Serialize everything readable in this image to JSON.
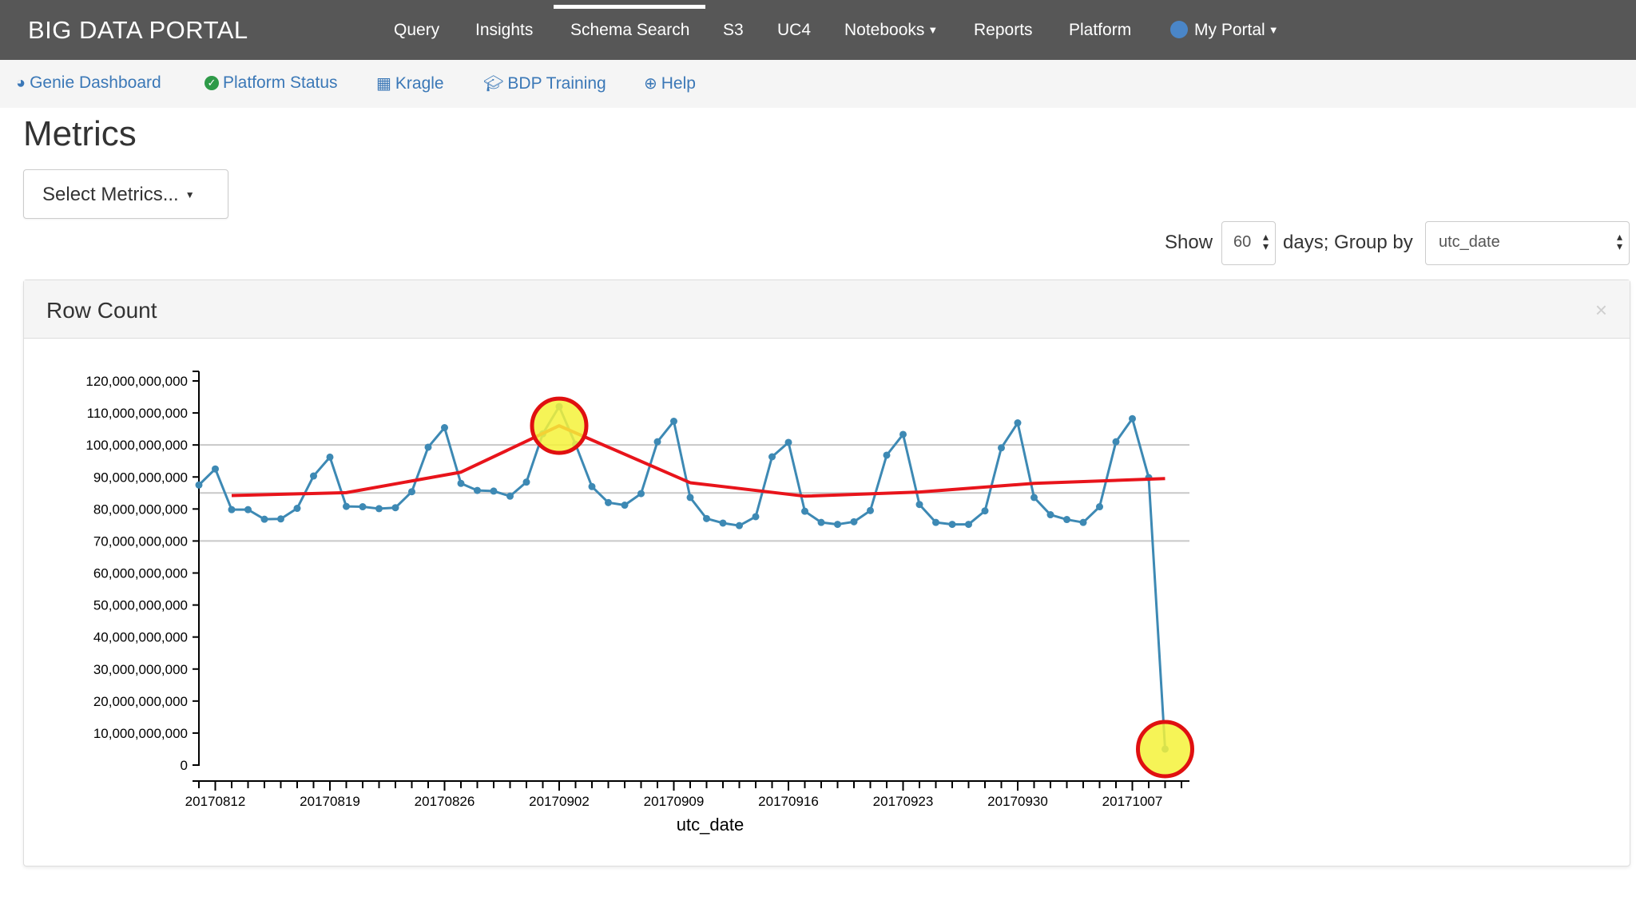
{
  "navbar": {
    "brand": "BIG DATA PORTAL",
    "items": [
      {
        "label": "Query"
      },
      {
        "label": "Insights"
      },
      {
        "label": "Schema Search",
        "active": true
      },
      {
        "label": "S3"
      },
      {
        "label": "UC4"
      },
      {
        "label": "Notebooks",
        "dropdown": true
      },
      {
        "label": "Reports"
      },
      {
        "label": "Platform"
      },
      {
        "label": "My Portal",
        "dropdown": true,
        "icon": "globe-icon"
      }
    ]
  },
  "subnav": {
    "items": [
      {
        "label": "Genie Dashboard",
        "icon": "dashboard-icon"
      },
      {
        "label": "Platform Status",
        "icon": "check-circle-icon"
      },
      {
        "label": "Kragle",
        "icon": "calendar-icon"
      },
      {
        "label": "BDP Training",
        "icon": "graduation-cap-icon"
      },
      {
        "label": "Help",
        "icon": "life-ring-icon"
      }
    ]
  },
  "page": {
    "title": "Metrics",
    "select_metrics_label": "Select Metrics...",
    "show_label": "Show",
    "days_value": "60",
    "days_group_label": "days; Group by",
    "group_by_value": "utc_date"
  },
  "panel": {
    "title": "Row Count",
    "close_glyph": "×"
  },
  "colors": {
    "navbar_bg": "#575757",
    "link": "#3b78b7",
    "series": "#3d89b4",
    "trend": "#e8141b",
    "highlight_fill": "#f4f23a",
    "highlight_ring": "#e01010"
  },
  "chart_data": {
    "type": "line",
    "title": "Row Count",
    "xlabel": "utc_date",
    "ylabel": "",
    "ylim": [
      0,
      120000000000
    ],
    "y_ticks": [
      0,
      10000000000,
      20000000000,
      30000000000,
      40000000000,
      50000000000,
      60000000000,
      70000000000,
      80000000000,
      90000000000,
      100000000000,
      110000000000,
      120000000000
    ],
    "y_tick_labels": [
      "0",
      "10,000,000,000",
      "20,000,000,000",
      "30,000,000,000",
      "40,000,000,000",
      "50,000,000,000",
      "60,000,000,000",
      "70,000,000,000",
      "80,000,000,000",
      "90,000,000,000",
      "100,000,000,000",
      "110,000,000,000",
      "120,000,000,000"
    ],
    "x_tick_labels": [
      "20170812",
      "20170819",
      "20170826",
      "20170902",
      "20170909",
      "20170916",
      "20170923",
      "20170930",
      "20171007"
    ],
    "x_tick_label_index": [
      1,
      8,
      15,
      22,
      29,
      36,
      43,
      50,
      57
    ],
    "x_count": 61,
    "reference_lines": [
      70000000000,
      85000000000,
      100000000000
    ],
    "series": [
      {
        "kind": "data",
        "x_index_start": 0,
        "values": [
          87500000000,
          92500000000,
          79800000000,
          79800000000,
          76800000000,
          76900000000,
          80200000000,
          90300000000,
          96200000000,
          80800000000,
          80700000000,
          80100000000,
          80400000000,
          85400000000,
          99300000000,
          105400000000,
          88000000000,
          85800000000,
          85600000000,
          84000000000,
          88400000000,
          103500000000,
          112000000000,
          100200000000,
          87000000000,
          82000000000,
          81200000000,
          84800000000,
          101000000000,
          107400000000,
          83600000000,
          77000000000,
          75600000000,
          74800000000,
          77600000000,
          96300000000,
          100800000000,
          79300000000,
          75800000000,
          75200000000,
          76000000000,
          79500000000,
          96800000000,
          103300000000,
          81400000000,
          75800000000,
          75200000000,
          75200000000,
          79400000000,
          99100000000,
          106900000000,
          83600000000,
          78200000000,
          76700000000,
          75800000000,
          80700000000,
          101000000000,
          108200000000,
          89800000000,
          5000000000
        ]
      },
      {
        "kind": "trend",
        "points": [
          [
            2,
            84200000000
          ],
          [
            9,
            85100000000
          ],
          [
            16,
            91500000000
          ],
          [
            22,
            106000000000
          ],
          [
            30,
            88200000000
          ],
          [
            37,
            84000000000
          ],
          [
            44,
            85300000000
          ],
          [
            51,
            88000000000
          ],
          [
            59,
            89500000000
          ]
        ]
      }
    ],
    "highlights": [
      {
        "x_index": 22,
        "value": 106000000000
      },
      {
        "x_index": 59,
        "value": 5000000000
      }
    ]
  }
}
